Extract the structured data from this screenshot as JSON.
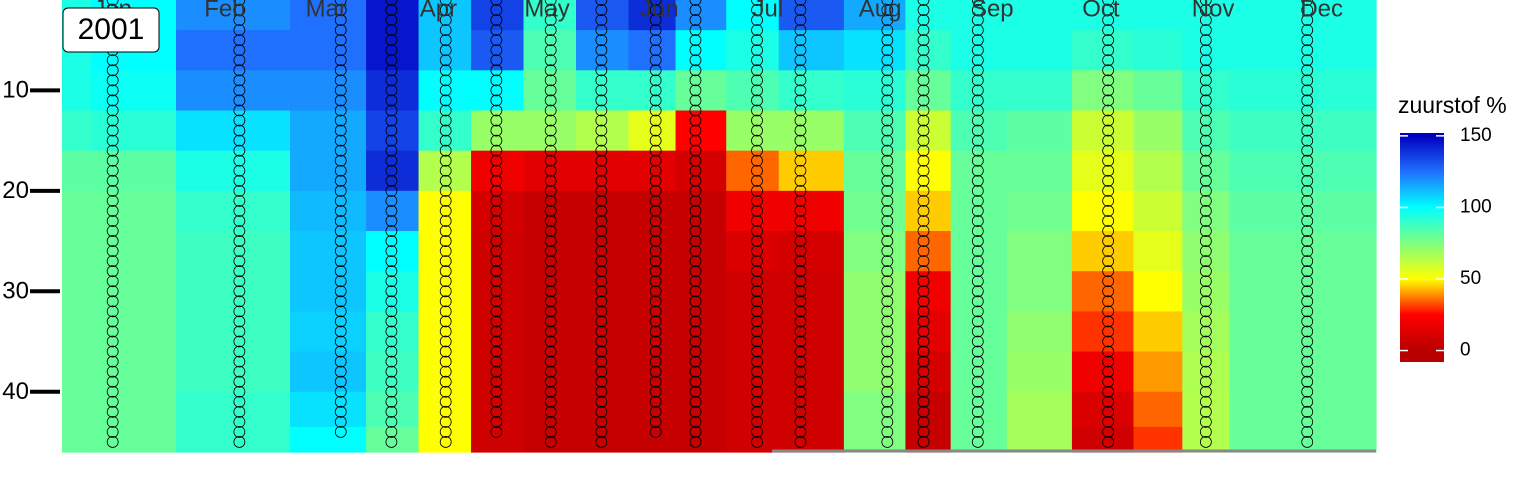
{
  "chart_data": {
    "type": "heatmap",
    "year_label": "2001",
    "legend_title": "zuurstof %",
    "xlim": [
      1,
      364
    ],
    "xticks": [
      {
        "value": 15,
        "label": "Jan"
      },
      {
        "value": 46,
        "label": "Feb"
      },
      {
        "value": 74,
        "label": "Mar"
      },
      {
        "value": 105,
        "label": "Apr"
      },
      {
        "value": 135,
        "label": "May"
      },
      {
        "value": 166,
        "label": "Jun"
      },
      {
        "value": 196,
        "label": "Jul"
      },
      {
        "value": 227,
        "label": "Aug"
      },
      {
        "value": 258,
        "label": "Sep"
      },
      {
        "value": 288,
        "label": "Oct"
      },
      {
        "value": 319,
        "label": "Nov"
      },
      {
        "value": 349,
        "label": "Dec"
      }
    ],
    "ylim": [
      46,
      1
    ],
    "yticks": [
      10,
      20,
      30,
      40
    ],
    "clim": [
      -8,
      152
    ],
    "cticks": [
      0,
      50,
      100,
      150
    ],
    "colorscale": [
      [
        0,
        "#b80000"
      ],
      [
        25,
        "#ff0000"
      ],
      [
        50,
        "#ffff00"
      ],
      [
        75,
        "#80ff80"
      ],
      [
        100,
        "#00ffff"
      ],
      [
        125,
        "#2070ff"
      ],
      [
        150,
        "#0000c0"
      ]
    ],
    "x": [
      3,
      15,
      50,
      78,
      92,
      107,
      121,
      136,
      150,
      165,
      176,
      193,
      205,
      229,
      239,
      254,
      270,
      290,
      304,
      317,
      330,
      345,
      360
    ],
    "depths": [
      2,
      6,
      10,
      14,
      18,
      22,
      26,
      30,
      34,
      38,
      42,
      45
    ],
    "values": [
      [
        95,
        95,
        95,
        90,
        82,
        80,
        80,
        80,
        80,
        80,
        80,
        80
      ],
      [
        100,
        100,
        98,
        92,
        82,
        80,
        80,
        80,
        80,
        80,
        80,
        80
      ],
      [
        120,
        125,
        120,
        105,
        95,
        90,
        88,
        88,
        88,
        88,
        90,
        90
      ],
      [
        125,
        125,
        120,
        115,
        115,
        112,
        110,
        110,
        108,
        110,
        105,
        100
      ],
      [
        145,
        145,
        140,
        135,
        140,
        120,
        100,
        95,
        90,
        88,
        85,
        80
      ],
      [
        110,
        110,
        100,
        90,
        65,
        50,
        50,
        50,
        50,
        50,
        50,
        50
      ],
      [
        135,
        130,
        100,
        70,
        20,
        10,
        8,
        8,
        8,
        8,
        8,
        8
      ],
      [
        90,
        85,
        80,
        70,
        15,
        5,
        5,
        5,
        5,
        5,
        5,
        5
      ],
      [
        130,
        120,
        90,
        65,
        15,
        5,
        5,
        5,
        5,
        5,
        5,
        5
      ],
      [
        140,
        125,
        90,
        55,
        15,
        5,
        5,
        5,
        5,
        5,
        5,
        5
      ],
      [
        120,
        100,
        80,
        25,
        10,
        5,
        5,
        5,
        5,
        5,
        5,
        5
      ],
      [
        100,
        95,
        85,
        70,
        35,
        20,
        12,
        8,
        8,
        8,
        8,
        8
      ],
      [
        130,
        110,
        90,
        70,
        45,
        20,
        10,
        8,
        8,
        8,
        8,
        8
      ],
      [
        115,
        105,
        92,
        85,
        80,
        78,
        75,
        72,
        72,
        72,
        75,
        75
      ],
      [
        95,
        90,
        80,
        60,
        50,
        45,
        35,
        20,
        15,
        10,
        5,
        5
      ],
      [
        95,
        95,
        90,
        85,
        80,
        80,
        80,
        80,
        80,
        80,
        80,
        80
      ],
      [
        95,
        95,
        90,
        82,
        80,
        78,
        75,
        75,
        72,
        70,
        68,
        68
      ],
      [
        95,
        90,
        75,
        60,
        55,
        50,
        45,
        35,
        30,
        20,
        12,
        8
      ],
      [
        95,
        92,
        80,
        70,
        65,
        60,
        55,
        50,
        45,
        40,
        35,
        30
      ],
      [
        95,
        95,
        90,
        85,
        80,
        75,
        72,
        70,
        68,
        66,
        65,
        65
      ],
      [
        95,
        95,
        92,
        88,
        85,
        82,
        80,
        80,
        80,
        80,
        80,
        80
      ],
      [
        95,
        95,
        92,
        88,
        85,
        82,
        80,
        80,
        80,
        80,
        80,
        80
      ],
      [
        95,
        95,
        92,
        88,
        85,
        82,
        80,
        80,
        80,
        80,
        80,
        80
      ]
    ],
    "sample_days": [
      15,
      50,
      78,
      92,
      107,
      121,
      136,
      150,
      165,
      176,
      193,
      205,
      229,
      239,
      254,
      290,
      317,
      345
    ],
    "sample_max_depth": [
      45,
      46,
      44,
      45,
      45,
      44,
      46,
      45,
      44,
      45,
      45,
      45,
      45,
      45,
      45,
      45,
      45,
      45
    ],
    "sample_depths": [
      1,
      2,
      3,
      4,
      5,
      6,
      7,
      8,
      9,
      10,
      11,
      12,
      13,
      14,
      15,
      16,
      17,
      18,
      19,
      20,
      21,
      22,
      23,
      24,
      25,
      26,
      27,
      28,
      29,
      30,
      31,
      32,
      33,
      34,
      35,
      36,
      37,
      38,
      39,
      40,
      41,
      42,
      43,
      44,
      45
    ]
  }
}
